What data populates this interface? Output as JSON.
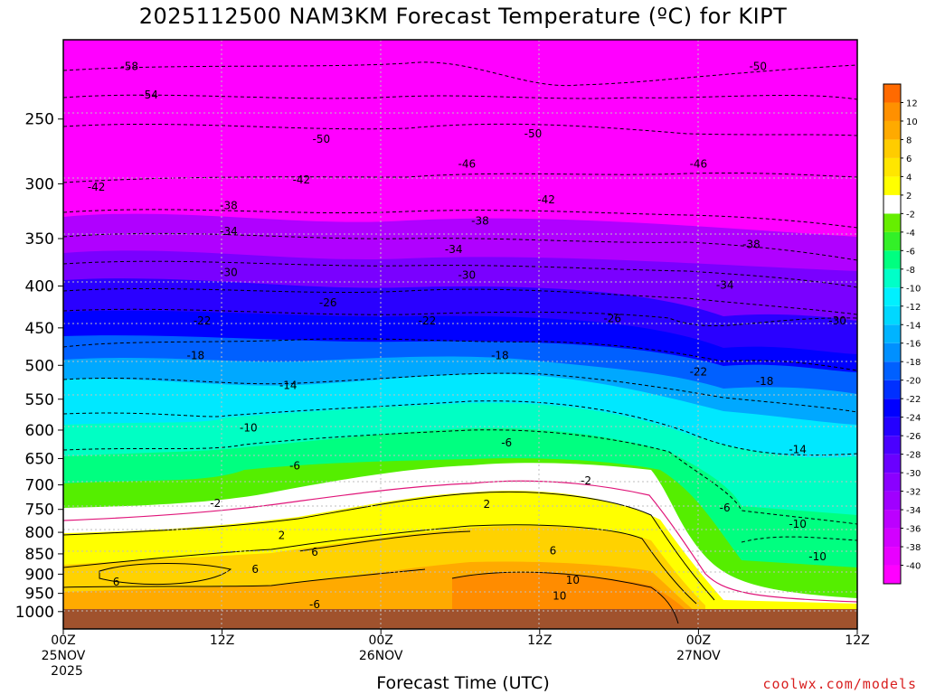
{
  "title": "2025112500 NAM3KM Forecast Temperature (ºC) for KIPT",
  "xlabel": "Forecast Time (UTC)",
  "credit": "coolwx.com/models",
  "colors": {
    "ground": "#a0522d",
    "freezing_line": "#e0167a",
    "grid": "#bfbfbf"
  },
  "chart_data": {
    "type": "heatmap",
    "title": "2025112500 NAM3KM Forecast Temperature (ºC) for KIPT",
    "xlabel": "Forecast Time (UTC)",
    "ylabel": "",
    "x_axis": {
      "unit": "forecast hour",
      "range": [
        0,
        60
      ],
      "ticks": [
        {
          "value": 0,
          "label": [
            "00Z",
            "25NOV",
            "2025"
          ]
        },
        {
          "value": 12,
          "label": [
            "12Z"
          ]
        },
        {
          "value": 24,
          "label": [
            "00Z",
            "26NOV"
          ]
        },
        {
          "value": 36,
          "label": [
            "12Z"
          ]
        },
        {
          "value": 48,
          "label": [
            "00Z",
            "27NOV"
          ]
        },
        {
          "value": 60,
          "label": [
            "12Z"
          ]
        }
      ]
    },
    "y_axis": {
      "unit": "hPa",
      "scale": "log",
      "inverted": true,
      "range": [
        1050,
        200
      ],
      "ticks": [
        250,
        300,
        350,
        400,
        450,
        500,
        550,
        600,
        650,
        700,
        750,
        800,
        850,
        900,
        950,
        1000
      ]
    },
    "grid": true,
    "colorbar": {
      "placement": "right",
      "levels": [
        -40,
        -38,
        -36,
        -34,
        -32,
        -30,
        -28,
        -26,
        -24,
        -22,
        -20,
        -18,
        -16,
        -14,
        -12,
        -10,
        -8,
        -6,
        -4,
        -2,
        2,
        4,
        6,
        8,
        10,
        12
      ],
      "colors": [
        "#ff00ff",
        "#e800ff",
        "#d200ff",
        "#bc00ff",
        "#a000ff",
        "#8a00ff",
        "#6a00ff",
        "#4a00ff",
        "#2400ff",
        "#0000ff",
        "#0030ff",
        "#0060ff",
        "#0090ff",
        "#00b4ff",
        "#00d8ff",
        "#00f0ff",
        "#00ffc8",
        "#00ff80",
        "#33f028",
        "#66ee00",
        "#ffffff",
        "#ffff00",
        "#ffe600",
        "#ffcc00",
        "#ffaa00",
        "#ff9000",
        "#ff6a00"
      ]
    },
    "isotherm_labels": [
      {
        "x": 5,
        "y": 215,
        "value": "-58"
      },
      {
        "x": 6.5,
        "y": 233,
        "value": "-54"
      },
      {
        "x": 19.5,
        "y": 264,
        "value": "-50"
      },
      {
        "x": 35.5,
        "y": 260,
        "value": "-50"
      },
      {
        "x": 52.5,
        "y": 215,
        "value": "-50"
      },
      {
        "x": 2.5,
        "y": 302,
        "value": "-42"
      },
      {
        "x": 18,
        "y": 296,
        "value": "-42"
      },
      {
        "x": 30.5,
        "y": 283,
        "value": "-46"
      },
      {
        "x": 48,
        "y": 283,
        "value": "-46"
      },
      {
        "x": 12.5,
        "y": 318,
        "value": "-38"
      },
      {
        "x": 12.5,
        "y": 342,
        "value": "-34"
      },
      {
        "x": 36.5,
        "y": 313,
        "value": "-42"
      },
      {
        "x": 31.5,
        "y": 332,
        "value": "-38"
      },
      {
        "x": 29.5,
        "y": 360,
        "value": "-34"
      },
      {
        "x": 52,
        "y": 355,
        "value": "-38"
      },
      {
        "x": 12.5,
        "y": 384,
        "value": "-30"
      },
      {
        "x": 30.5,
        "y": 387,
        "value": "-30"
      },
      {
        "x": 20,
        "y": 418,
        "value": "-26"
      },
      {
        "x": 50,
        "y": 398,
        "value": "-34"
      },
      {
        "x": 10.5,
        "y": 440,
        "value": "-22"
      },
      {
        "x": 27.5,
        "y": 440,
        "value": "-22"
      },
      {
        "x": 41.5,
        "y": 437,
        "value": "-26"
      },
      {
        "x": 58.5,
        "y": 440,
        "value": "-30"
      },
      {
        "x": 10,
        "y": 485,
        "value": "-18"
      },
      {
        "x": 33,
        "y": 485,
        "value": "-18"
      },
      {
        "x": 17,
        "y": 528,
        "value": "-14"
      },
      {
        "x": 48,
        "y": 508,
        "value": "-22"
      },
      {
        "x": 53,
        "y": 522,
        "value": "-18"
      },
      {
        "x": 14,
        "y": 595,
        "value": "-10"
      },
      {
        "x": 33.5,
        "y": 620,
        "value": "-6"
      },
      {
        "x": 55.5,
        "y": 632,
        "value": "-14"
      },
      {
        "x": 17.5,
        "y": 662,
        "value": "-6"
      },
      {
        "x": 39.5,
        "y": 690,
        "value": "-2"
      },
      {
        "x": 11.5,
        "y": 735,
        "value": "-2"
      },
      {
        "x": 50,
        "y": 745,
        "value": "-6"
      },
      {
        "x": 32,
        "y": 737,
        "value": "2"
      },
      {
        "x": 55.5,
        "y": 780,
        "value": "-10"
      },
      {
        "x": 16.5,
        "y": 805,
        "value": "2"
      },
      {
        "x": 37,
        "y": 840,
        "value": "6"
      },
      {
        "x": 19,
        "y": 844,
        "value": "6"
      },
      {
        "x": 57,
        "y": 855,
        "value": "-10"
      },
      {
        "x": 14.5,
        "y": 885,
        "value": "6"
      },
      {
        "x": 4,
        "y": 918,
        "value": "6"
      },
      {
        "x": 38.5,
        "y": 913,
        "value": "10"
      },
      {
        "x": 37.5,
        "y": 955,
        "value": "10"
      },
      {
        "x": 19,
        "y": 978,
        "value": "-6"
      }
    ]
  }
}
